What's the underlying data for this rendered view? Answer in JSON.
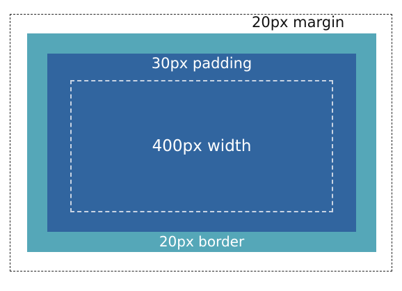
{
  "diagram": {
    "margin_label": "20px margin",
    "border_label": "20px border",
    "padding_label": "30px padding",
    "content_label": "400px width",
    "colors": {
      "border_area": "#55a7b8",
      "padding_area": "#31659f",
      "content_outline": "#c9d4e3",
      "margin_outline": "#222222"
    }
  }
}
